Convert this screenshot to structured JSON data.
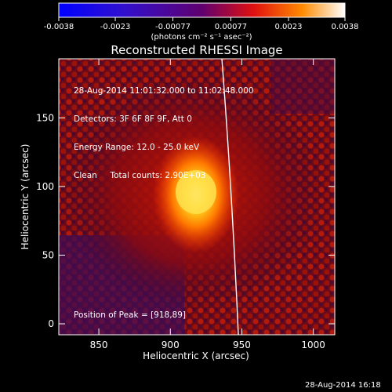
{
  "colorbar": {
    "ticks": [
      "-0.0038",
      "-0.0023",
      "-0.00077",
      "0.00077",
      "0.0023",
      "0.0038"
    ],
    "unit": "(photons cm⁻² s⁻¹ asec⁻²)",
    "range": [
      -0.0038,
      0.0038
    ]
  },
  "plot": {
    "title": "Reconstructed RHESSI Image",
    "xlabel": "Heliocentric X (arcsec)",
    "ylabel": "Heliocentric Y (arcsec)",
    "xticks": [
      "850",
      "900",
      "950",
      "1000"
    ],
    "yticks": [
      "0",
      "50",
      "100",
      "150"
    ],
    "xlim": [
      822,
      1015
    ],
    "ylim": [
      -8,
      193
    ]
  },
  "annotations": {
    "time_range": "28-Aug-2014 11:01:32.000 to 11:02:48.000",
    "detectors": "Detectors: 3F 6F 8F 9F, Att 0",
    "energy": "Energy Range: 12.0 - 25.0 keV",
    "clean": "Clean     Total counts: 2.90E+03",
    "peak": "Position of Peak = [918,89]"
  },
  "footer": {
    "timestamp": "28-Aug-2014 16:18"
  }
}
